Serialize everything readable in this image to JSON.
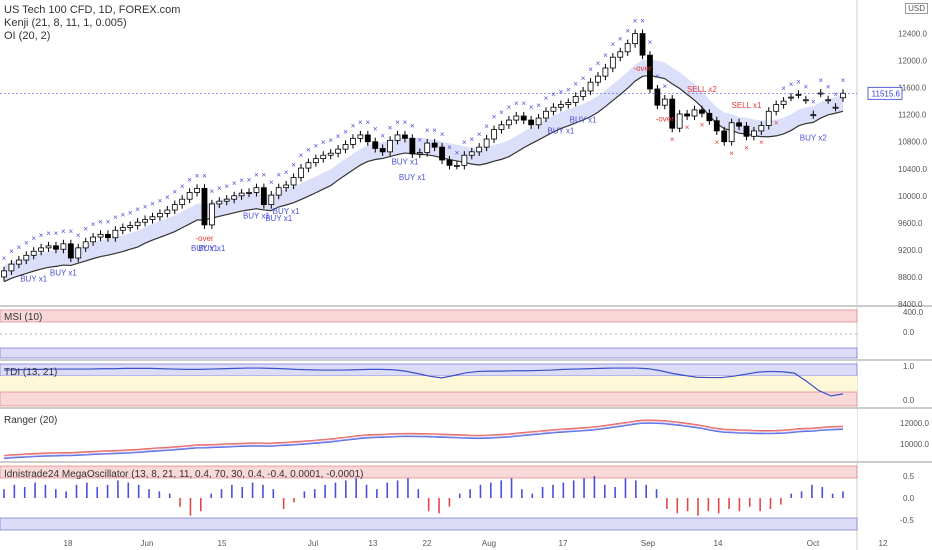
{
  "header": {
    "title": "US Tech 100 CFD, 1D, FOREX.com",
    "indicator1": "Kenji (21, 8, 11, 1, 0.005)",
    "indicator2": "OI (20, 2)",
    "currency": "USD"
  },
  "panes": {
    "msi": "MSI (10)",
    "tdi": "TDI (13, 21)",
    "ranger": "Ranger (20)",
    "mega": "Idnistrade24 MegaOscillator (13, 8, 21, 11, 0.4, 70, 30, 0.4, -0.4, 0.0001, -0.0001)"
  },
  "colors": {
    "up": "#000000",
    "down": "#000000",
    "band_fill": "#d8dcf8",
    "buy_marker": "#4a4fd8",
    "sell_marker": "#e0403a",
    "price_last": "#2e3dd6"
  },
  "chart_data": [
    {
      "type": "candlestick",
      "ylim": [
        8400,
        12600
      ],
      "y_ticks": [
        "12400.0",
        "12000.0",
        "11600.0",
        "11200.0",
        "10800.0",
        "10400.0",
        "10000.0",
        "9600.0",
        "9200.0",
        "8800.0",
        "8400.0"
      ],
      "last_price": "11515.6",
      "x_ticks": [
        "18",
        "Jun",
        "15",
        "Jul",
        "13",
        "22",
        "Aug",
        "17",
        "Sep",
        "14",
        "Oct",
        "12"
      ],
      "close": [
        8890,
        8990,
        9050,
        9120,
        9180,
        9230,
        9260,
        9210,
        9290,
        9080,
        9230,
        9320,
        9390,
        9430,
        9380,
        9490,
        9530,
        9560,
        9610,
        9650,
        9690,
        9740,
        9790,
        9870,
        9950,
        10050,
        10110,
        9570,
        9880,
        9920,
        9950,
        10000,
        10040,
        10050,
        10120,
        9870,
        10010,
        10120,
        10160,
        10270,
        10410,
        10490,
        10550,
        10600,
        10630,
        10690,
        10760,
        10850,
        10900,
        10800,
        10700,
        10650,
        10820,
        10900,
        10850,
        10620,
        10640,
        10780,
        10720,
        10530,
        10450,
        10450,
        10600,
        10650,
        10720,
        10840,
        10980,
        11050,
        11120,
        11180,
        11120,
        11050,
        11150,
        11250,
        11310,
        11350,
        11380,
        11470,
        11550,
        11680,
        11770,
        11890,
        12050,
        12130,
        12250,
        12400,
        12080,
        11580,
        11340,
        11430,
        11000,
        11210,
        11180,
        11270,
        11220,
        11110,
        10960,
        10800,
        11080,
        11030,
        10880,
        10960,
        11040,
        11250,
        11350,
        11400,
        11460,
        11500,
        11420,
        11200,
        11520,
        11420,
        11310,
        11516
      ],
      "open": [
        8800,
        8890,
        8990,
        9050,
        9120,
        9180,
        9230,
        9260,
        9210,
        9290,
        9080,
        9230,
        9320,
        9390,
        9430,
        9380,
        9490,
        9530,
        9560,
        9610,
        9650,
        9690,
        9740,
        9790,
        9870,
        9950,
        10050,
        10110,
        9570,
        9880,
        9920,
        9950,
        10000,
        10040,
        10050,
        10120,
        9870,
        10010,
        10120,
        10160,
        10270,
        10410,
        10490,
        10550,
        10600,
        10630,
        10690,
        10760,
        10850,
        10900,
        10800,
        10700,
        10650,
        10820,
        10900,
        10850,
        10620,
        10640,
        10780,
        10720,
        10530,
        10450,
        10450,
        10600,
        10650,
        10720,
        10840,
        10980,
        11050,
        11120,
        11180,
        11120,
        11050,
        11150,
        11250,
        11310,
        11350,
        11380,
        11470,
        11550,
        11680,
        11770,
        11890,
        12050,
        12130,
        12250,
        12400,
        12080,
        11580,
        11340,
        11430,
        11000,
        11210,
        11180,
        11270,
        11220,
        11110,
        10960,
        10800,
        11080,
        11030,
        10880,
        10960,
        11040,
        11250,
        11350,
        11460,
        11500,
        11420,
        11200,
        11520,
        11420,
        11310,
        11450
      ],
      "buy_labels": [
        "BUY x1",
        "BUY x1",
        "BUY x1",
        "BUY x1",
        "BUY x1",
        "BUY x1",
        "BUY x1",
        "BUY x1",
        "BUY x1",
        "BUY x1",
        "BUY x1",
        "BUY x2"
      ],
      "sell_labels": [
        "SELL x2",
        "SELL x1"
      ],
      "over_labels": [
        "-over",
        "-over",
        "-over"
      ]
    },
    {
      "type": "line",
      "name": "MSI (10)",
      "y_ticks": [
        "400.0",
        "0.0"
      ]
    },
    {
      "type": "line",
      "name": "TDI (13, 21)",
      "y_ticks": [
        "1.0",
        "0.0"
      ],
      "values": [
        0.88,
        0.89,
        0.9,
        0.9,
        0.91,
        0.91,
        0.91,
        0.91,
        0.92,
        0.92,
        0.93,
        0.93,
        0.93,
        0.92,
        0.91,
        0.9,
        0.9,
        0.91,
        0.92,
        0.93,
        0.94,
        0.94,
        0.93,
        0.92,
        0.9,
        0.89,
        0.88,
        0.88,
        0.88,
        0.89,
        0.9,
        0.9,
        0.89,
        0.85,
        0.78,
        0.7,
        0.65,
        0.72,
        0.8,
        0.84,
        0.85,
        0.85,
        0.86,
        0.86,
        0.87,
        0.88,
        0.9,
        0.91,
        0.92,
        0.93,
        0.94,
        0.94,
        0.94,
        0.92,
        0.86,
        0.78,
        0.72,
        0.67,
        0.66,
        0.66,
        0.7,
        0.76,
        0.82,
        0.84,
        0.83,
        0.79,
        0.55,
        0.28,
        0.12,
        0.18
      ]
    },
    {
      "type": "line",
      "name": "Ranger (20)",
      "y_ticks": [
        "12000.0",
        "10000.0"
      ]
    },
    {
      "type": "bar",
      "name": "Idnistrade24 MegaOscillator",
      "y_ticks": [
        "0.5",
        "0.0",
        "-0.5"
      ],
      "values": [
        0.2,
        0.3,
        0.25,
        0.35,
        0.3,
        0.2,
        0.15,
        0.3,
        0.35,
        0.25,
        0.3,
        0.4,
        0.35,
        0.3,
        0.2,
        0.15,
        0.1,
        -0.2,
        -0.4,
        -0.3,
        0.1,
        0.2,
        0.3,
        0.25,
        0.35,
        0.3,
        0.2,
        -0.25,
        -0.1,
        0.15,
        0.2,
        0.3,
        0.35,
        0.4,
        0.45,
        0.3,
        0.2,
        0.35,
        0.4,
        0.45,
        0.2,
        -0.3,
        -0.35,
        -0.2,
        0.1,
        0.2,
        0.3,
        0.35,
        0.4,
        0.45,
        0.2,
        0.1,
        0.25,
        0.3,
        0.35,
        0.4,
        0.45,
        0.5,
        0.3,
        0.25,
        0.45,
        0.4,
        0.3,
        0.2,
        -0.25,
        -0.35,
        -0.3,
        -0.4,
        -0.3,
        -0.35,
        -0.25,
        -0.3,
        -0.2,
        -0.3,
        -0.25,
        -0.15,
        0.1,
        0.15,
        0.3,
        0.25,
        0.1,
        0.15
      ]
    }
  ]
}
